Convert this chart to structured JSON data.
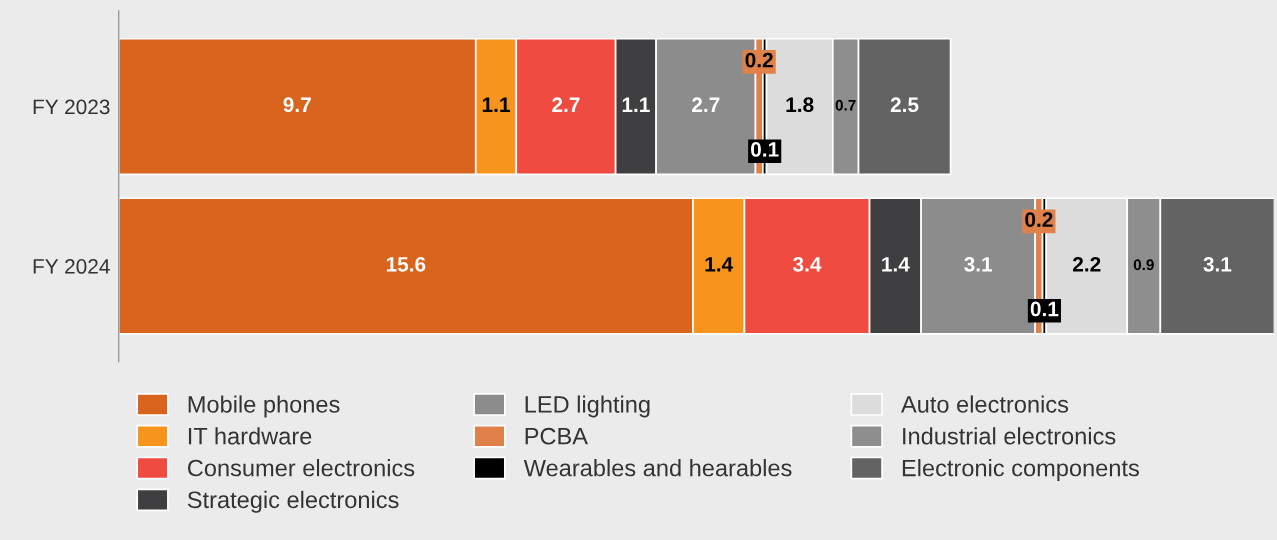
{
  "chart_data": {
    "type": "bar",
    "orientation": "horizontal",
    "stacked": true,
    "data_labels": true,
    "legend": "bottom",
    "grid": false,
    "tick_labels": "y",
    "categories": [
      "FY 2023",
      "FY 2024"
    ],
    "xlim": [
      0,
      31.4
    ],
    "series": [
      {
        "name": "Mobile phones",
        "color": "#d9641e",
        "values": [
          9.7,
          15.6
        ]
      },
      {
        "name": "IT hardware",
        "color": "#f7941d",
        "values": [
          1.1,
          1.4
        ]
      },
      {
        "name": "Consumer electronics",
        "color": "#f04b40",
        "values": [
          2.7,
          3.4
        ]
      },
      {
        "name": "Strategic electronics",
        "color": "#3f3f41",
        "values": [
          1.1,
          1.4
        ]
      },
      {
        "name": "LED lighting",
        "color": "#8c8c8c",
        "values": [
          2.7,
          3.1
        ]
      },
      {
        "name": "PCBA",
        "color": "#e0814a",
        "values": [
          0.2,
          0.2
        ]
      },
      {
        "name": "Wearables and hearables",
        "color": "#000000",
        "values": [
          0.1,
          0.1
        ]
      },
      {
        "name": "Auto electronics",
        "color": "#dcdcdd",
        "values": [
          1.8,
          2.2
        ]
      },
      {
        "name": "Industrial electronics",
        "color": "#8e8e8e",
        "values": [
          0.7,
          0.9
        ]
      },
      {
        "name": "Electronic components",
        "color": "#636363",
        "values": [
          2.5,
          3.1
        ]
      }
    ]
  }
}
